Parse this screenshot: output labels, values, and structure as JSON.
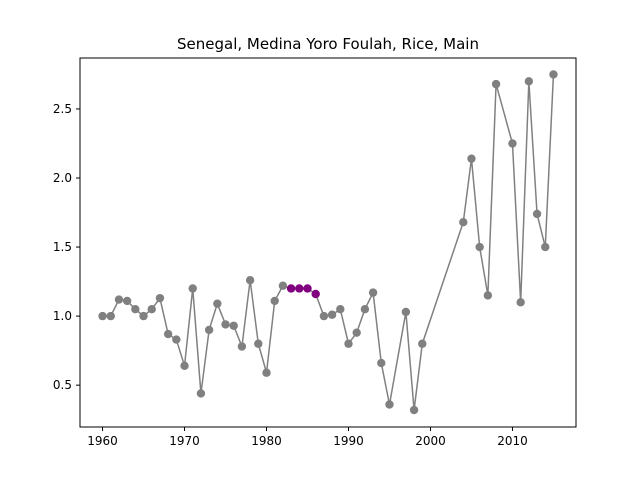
{
  "chart_data": {
    "type": "line",
    "title": "Senegal, Medina Yoro Foulah, Rice, Main",
    "xlabel": "",
    "ylabel": "",
    "xlim": [
      1957.25,
      2017.75
    ],
    "ylim": [
      0.197,
      2.869
    ],
    "xticks": [
      1960,
      1970,
      1980,
      1990,
      2000,
      2010
    ],
    "yticks": [
      0.5,
      1.0,
      1.5,
      2.0,
      2.5
    ],
    "ytick_labels": [
      "0.5",
      "1.0",
      "1.5",
      "2.0",
      "2.5"
    ],
    "grid": false,
    "colors": {
      "line": "#808080",
      "marker": "#808080",
      "highlight": "#800080"
    },
    "highlight_years": [
      1983,
      1984,
      1985,
      1986
    ],
    "series": [
      {
        "x": [
          1960,
          1961,
          1962,
          1963,
          1964,
          1965,
          1966,
          1967,
          1968,
          1969,
          1970,
          1971,
          1972,
          1973,
          1974,
          1975,
          1976,
          1977,
          1978,
          1979,
          1980,
          1981,
          1982,
          1983,
          1984,
          1985,
          1986,
          1987,
          1988,
          1989,
          1990,
          1991,
          1992,
          1993,
          1994,
          1995,
          1997,
          1998,
          1999,
          2004,
          2005,
          2006,
          2007,
          2008,
          2010,
          2011,
          2012,
          2013,
          2014,
          2015
        ],
        "y": [
          1.0,
          1.0,
          1.12,
          1.11,
          1.05,
          1.0,
          1.05,
          1.13,
          0.87,
          0.83,
          0.64,
          1.2,
          0.44,
          0.9,
          1.09,
          0.94,
          0.93,
          0.78,
          1.26,
          0.8,
          0.59,
          1.11,
          1.22,
          1.2,
          1.2,
          1.2,
          1.16,
          1.0,
          1.01,
          1.05,
          0.8,
          0.88,
          1.05,
          1.17,
          0.66,
          0.36,
          1.03,
          0.32,
          0.8,
          1.68,
          2.14,
          1.5,
          1.15,
          2.68,
          2.25,
          1.1,
          2.7,
          1.74,
          1.5,
          2.75
        ]
      }
    ]
  }
}
